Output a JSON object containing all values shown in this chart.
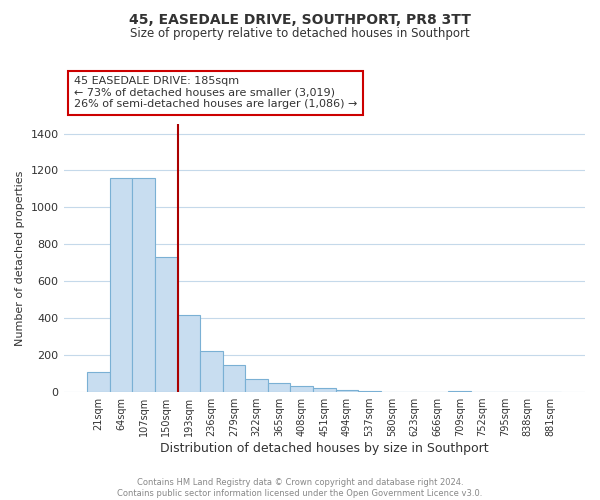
{
  "title": "45, EASEDALE DRIVE, SOUTHPORT, PR8 3TT",
  "subtitle": "Size of property relative to detached houses in Southport",
  "xlabel": "Distribution of detached houses by size in Southport",
  "ylabel": "Number of detached properties",
  "bar_labels": [
    "21sqm",
    "64sqm",
    "107sqm",
    "150sqm",
    "193sqm",
    "236sqm",
    "279sqm",
    "322sqm",
    "365sqm",
    "408sqm",
    "451sqm",
    "494sqm",
    "537sqm",
    "580sqm",
    "623sqm",
    "666sqm",
    "709sqm",
    "752sqm",
    "795sqm",
    "838sqm",
    "881sqm"
  ],
  "bar_values": [
    107,
    1160,
    1160,
    730,
    420,
    220,
    148,
    72,
    50,
    35,
    20,
    13,
    5,
    3,
    2,
    1,
    5,
    0,
    0,
    0,
    0
  ],
  "bar_color": "#c8ddf0",
  "bar_edge_color": "#7ab0d4",
  "vline_color": "#aa0000",
  "annotation_title": "45 EASEDALE DRIVE: 185sqm",
  "annotation_line1": "← 73% of detached houses are smaller (3,019)",
  "annotation_line2": "26% of semi-detached houses are larger (1,086) →",
  "annotation_box_color": "#ffffff",
  "annotation_box_edge_color": "#cc0000",
  "ylim": [
    0,
    1450
  ],
  "yticks": [
    0,
    200,
    400,
    600,
    800,
    1000,
    1200,
    1400
  ],
  "footer_line1": "Contains HM Land Registry data © Crown copyright and database right 2024.",
  "footer_line2": "Contains public sector information licensed under the Open Government Licence v3.0.",
  "bg_color": "#ffffff",
  "grid_color": "#c5d9ea"
}
